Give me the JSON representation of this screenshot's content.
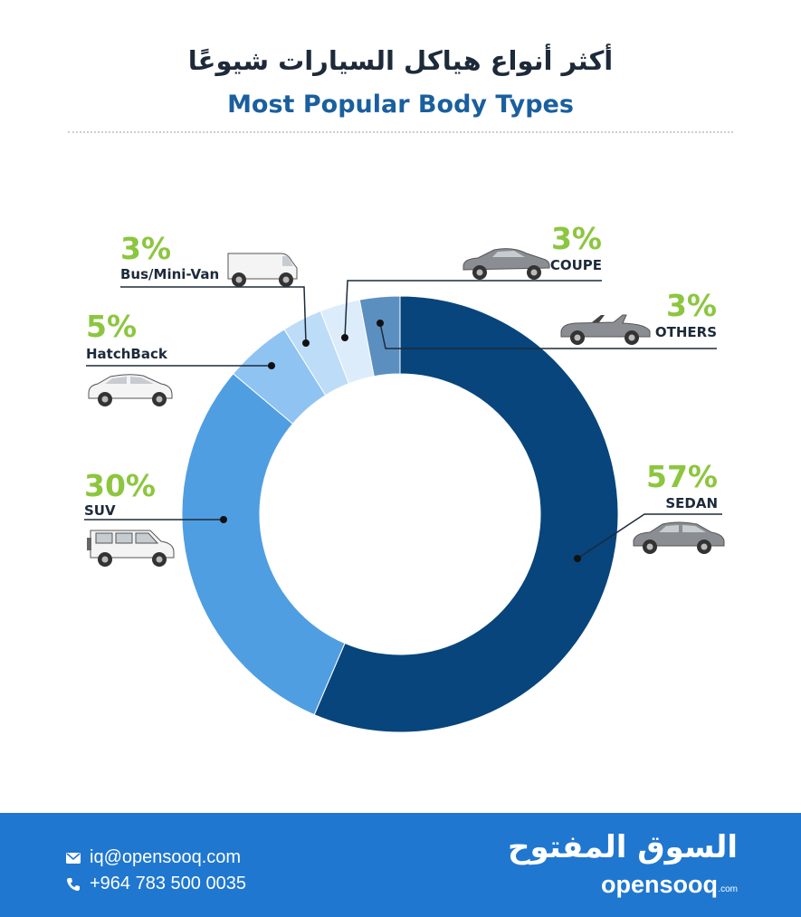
{
  "header": {
    "title_ar": "أكثر أنواع هياكل السيارات شيوعًا",
    "title_en": "Most Popular Body Types"
  },
  "chart_data": {
    "type": "pie",
    "donut": true,
    "categories": [
      "SEDAN",
      "SUV",
      "HatchBack",
      "Bus/Mini-Van",
      "COUPE",
      "OTHERS"
    ],
    "values": [
      57,
      30,
      5,
      3,
      3,
      3
    ],
    "value_labels": [
      "57%",
      "30%",
      "5%",
      "3%",
      "3%",
      "3%"
    ],
    "colors": [
      "#07457c",
      "#4f9ee2",
      "#8ec3f2",
      "#bcdcf7",
      "#dcecfb",
      "#5b8fc0"
    ],
    "label_color": "#8cc63f",
    "start_angle_deg": 0,
    "direction": "clockwise"
  },
  "footer": {
    "email": "iq@opensooq.com",
    "phone": "+964 783 500 0035",
    "logo_ar": "السوق المفتوح",
    "logo_en": "opensooq",
    "logo_suffix": ".com",
    "background": "#1f77d0"
  }
}
